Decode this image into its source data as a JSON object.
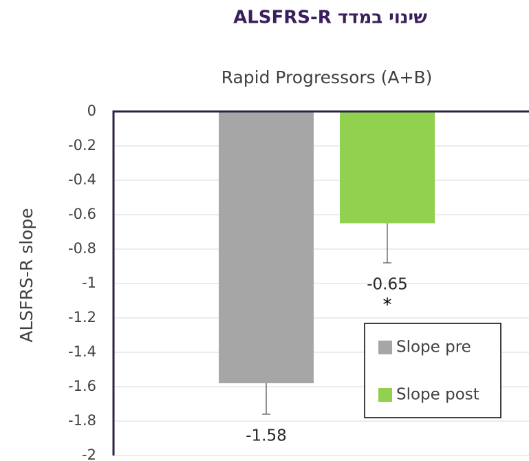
{
  "chart_data": {
    "type": "bar",
    "title": "שינוי במדד ALSFRS-R",
    "subtitle": "Rapid Progressors (A+B)",
    "y_label": "ALSFRS-R slope",
    "annotation": "*",
    "series": [
      {
        "name": "Slope pre",
        "color": "#a6a6a6",
        "values": [
          -1.58
        ],
        "errors": [
          0.18
        ]
      },
      {
        "name": "Slope post",
        "color": "#92d050",
        "values": [
          -0.65
        ],
        "errors": [
          0.23
        ]
      }
    ],
    "ylim": [
      -2,
      0
    ],
    "yticks": [
      0,
      -0.2,
      -0.4,
      -0.6,
      -0.8,
      -1,
      -1.2,
      -1.4,
      -1.6,
      -1.8,
      -2
    ],
    "grid": true,
    "legend": "lower right"
  }
}
